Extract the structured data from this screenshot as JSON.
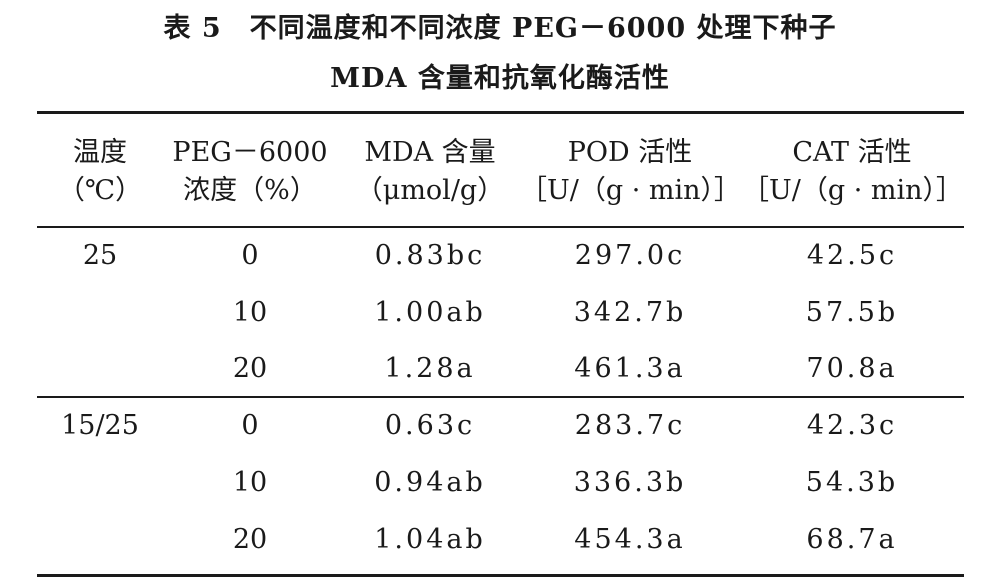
{
  "table": {
    "title_line1": "表 5　不同温度和不同浓度 PEG－6000 处理下种子",
    "title_line2": "MDA 含量和抗氧化酶活性",
    "headers": [
      {
        "line1": "温度",
        "line2": "（℃）"
      },
      {
        "line1": "PEG－6000",
        "line2": "浓度（%）"
      },
      {
        "line1": "MDA 含量",
        "line2": "（μmol/g）"
      },
      {
        "line1": "POD 活性",
        "line2": "［U/（g · min）］"
      },
      {
        "line1": "CAT 活性",
        "line2": "［U/（g · min）］"
      }
    ],
    "rows": [
      {
        "temp": "25",
        "peg": "0",
        "mda": "0.83bc",
        "pod": "297.0c",
        "cat": "42.5c"
      },
      {
        "temp": "",
        "peg": "10",
        "mda": "1.00ab",
        "pod": "342.7b",
        "cat": "57.5b"
      },
      {
        "temp": "",
        "peg": "20",
        "mda": "1.28a",
        "pod": "461.3a",
        "cat": "70.8a"
      },
      {
        "temp": "15/25",
        "peg": "0",
        "mda": "0.63c",
        "pod": "283.7c",
        "cat": "42.3c"
      },
      {
        "temp": "",
        "peg": "10",
        "mda": "0.94ab",
        "pod": "336.3b",
        "cat": "54.3b"
      },
      {
        "temp": "",
        "peg": "20",
        "mda": "1.04ab",
        "pod": "454.3a",
        "cat": "68.7a"
      }
    ]
  }
}
